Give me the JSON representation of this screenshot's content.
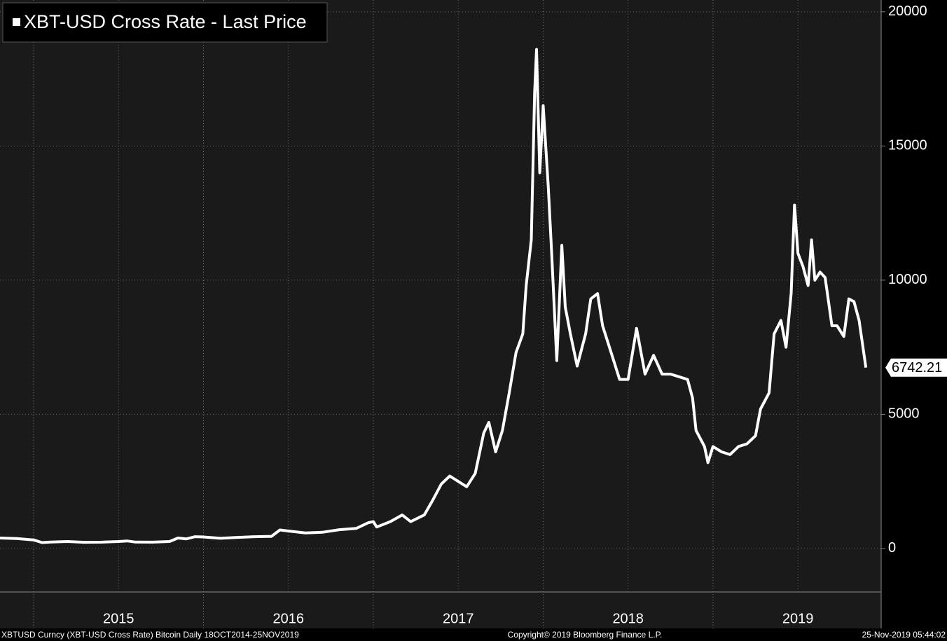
{
  "chart_data": {
    "type": "line",
    "series": [
      {
        "name": "XBT-USD Cross Rate - Last Price",
        "color": "#ffffff",
        "x": [
          2014.8,
          2014.9,
          2015.0,
          2015.05,
          2015.1,
          2015.2,
          2015.3,
          2015.4,
          2015.5,
          2015.55,
          2015.6,
          2015.7,
          2015.8,
          2015.85,
          2015.9,
          2015.95,
          2016.0,
          2016.1,
          2016.2,
          2016.3,
          2016.4,
          2016.45,
          2016.5,
          2016.6,
          2016.7,
          2016.8,
          2016.9,
          2016.97,
          2017.0,
          2017.02,
          2017.1,
          2017.17,
          2017.22,
          2017.3,
          2017.35,
          2017.4,
          2017.45,
          2017.5,
          2017.55,
          2017.6,
          2017.65,
          2017.68,
          2017.72,
          2017.76,
          2017.8,
          2017.84,
          2017.88,
          2017.9,
          2017.93,
          2017.95,
          2017.961,
          2017.98,
          2018.0,
          2018.03,
          2018.05,
          2018.08,
          2018.11,
          2018.13,
          2018.16,
          2018.2,
          2018.25,
          2018.28,
          2018.32,
          2018.35,
          2018.4,
          2018.45,
          2018.5,
          2018.55,
          2018.6,
          2018.65,
          2018.7,
          2018.75,
          2018.8,
          2018.85,
          2018.88,
          2018.9,
          2018.95,
          2018.97,
          2019.0,
          2019.05,
          2019.1,
          2019.15,
          2019.2,
          2019.25,
          2019.28,
          2019.33,
          2019.36,
          2019.4,
          2019.43,
          2019.46,
          2019.48,
          2019.5,
          2019.53,
          2019.56,
          2019.58,
          2019.6,
          2019.63,
          2019.66,
          2019.7,
          2019.73,
          2019.77,
          2019.8,
          2019.83,
          2019.86,
          2019.9
        ],
        "values": [
          390,
          370,
          320,
          220,
          240,
          260,
          230,
          235,
          260,
          280,
          240,
          235,
          260,
          390,
          360,
          440,
          430,
          380,
          415,
          440,
          450,
          690,
          650,
          580,
          605,
          700,
          750,
          960,
          1000,
          800,
          1000,
          1250,
          1000,
          1250,
          1800,
          2400,
          2700,
          2500,
          2300,
          2800,
          4300,
          4700,
          3600,
          4400,
          5800,
          7300,
          8000,
          9800,
          11500,
          17000,
          18600,
          14000,
          16500,
          13500,
          11000,
          7000,
          11300,
          9000,
          8000,
          6800,
          8000,
          9300,
          9500,
          8300,
          7300,
          6300,
          6300,
          8200,
          6500,
          7200,
          6500,
          6500,
          6400,
          6300,
          5600,
          4400,
          3800,
          3200,
          3800,
          3600,
          3500,
          3800,
          3900,
          4200,
          5200,
          5800,
          8000,
          8500,
          7500,
          9500,
          12800,
          11000,
          10500,
          9800,
          11500,
          10000,
          10300,
          10100,
          8300,
          8300,
          7900,
          9300,
          9200,
          8500,
          6742.21
        ]
      }
    ],
    "last_value_label": "6742.21",
    "xlim": [
      2014.802,
      2019.99
    ],
    "xticks": [
      {
        "value": 2015.5,
        "label": "2015"
      },
      {
        "value": 2016.5,
        "label": "2016"
      },
      {
        "value": 2017.5,
        "label": "2017"
      },
      {
        "value": 2018.5,
        "label": "2018"
      },
      {
        "value": 2019.5,
        "label": "2019"
      }
    ],
    "xgrid": [
      2015,
      2016,
      2017,
      2018,
      2019
    ],
    "ylim": [
      -1620,
      20440
    ],
    "yticks": [
      0,
      5000,
      10000,
      15000,
      20000
    ],
    "grid": true,
    "footer": {
      "left": "XBTUSD Curncy (XBT-USD Cross Rate) Bitcoin  Daily 18OCT2014-25NOV2019",
      "center": "Copyright© 2019 Bloomberg Finance L.P.",
      "right": "25-Nov-2019 05:44:02"
    }
  }
}
